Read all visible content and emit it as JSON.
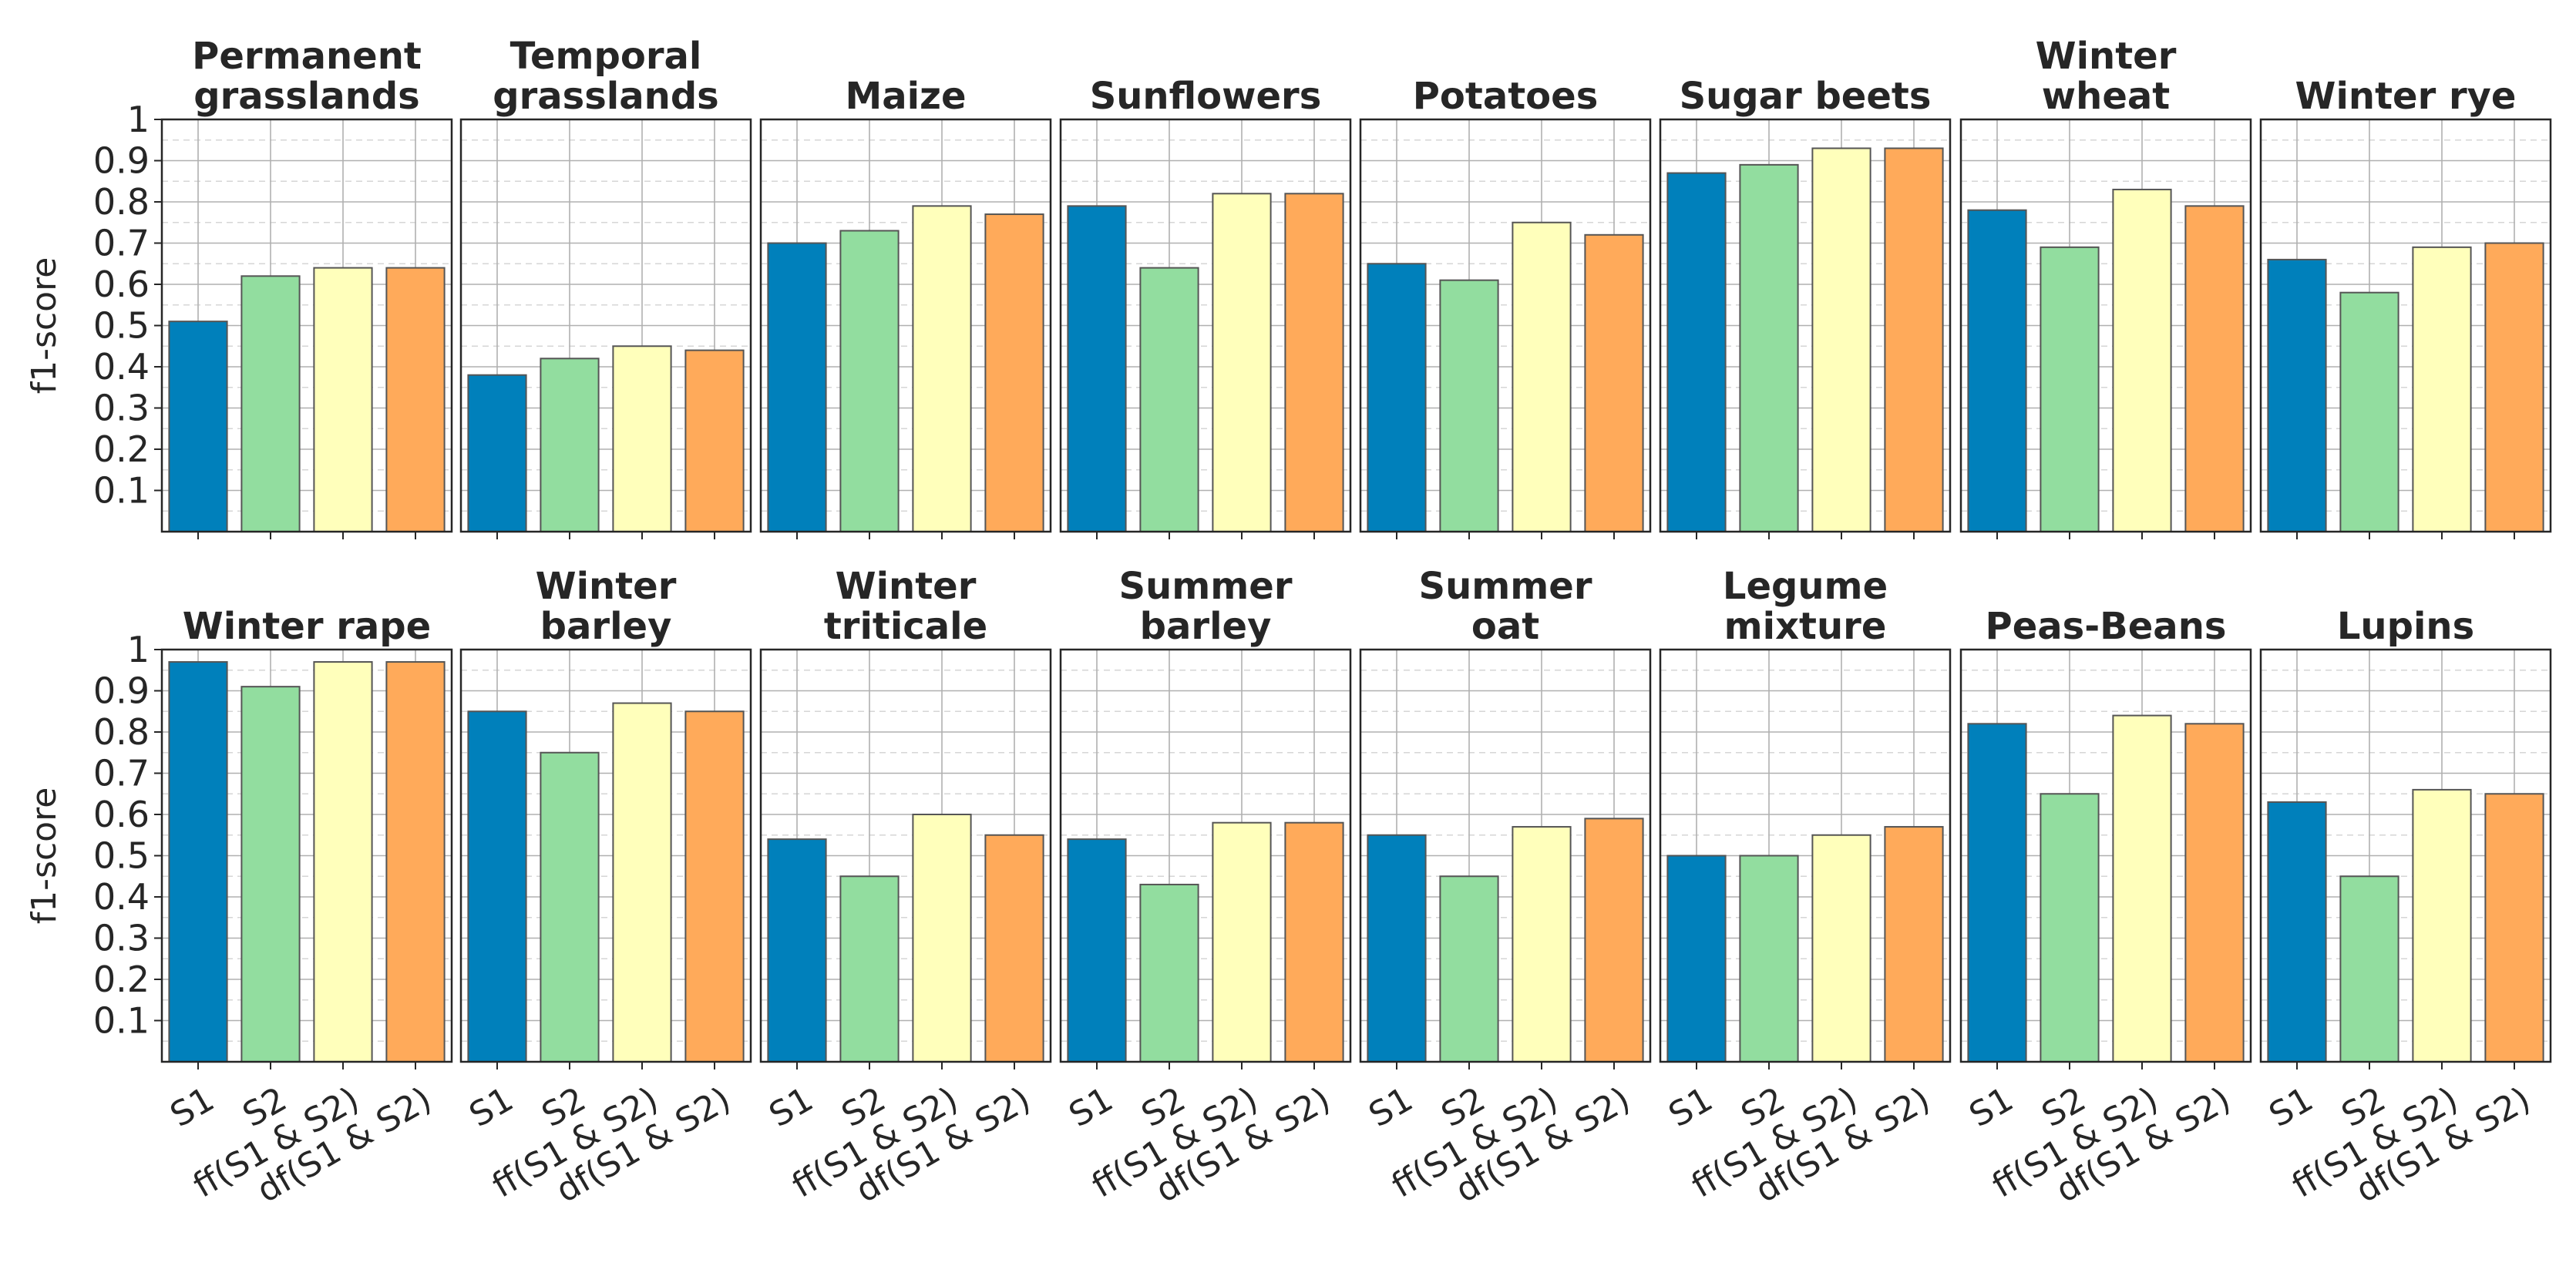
{
  "chart_data": {
    "type": "bar",
    "layout": "small-multiples",
    "ylabel": "f1-score",
    "ylim": [
      0,
      1
    ],
    "yticks": [
      "0.1",
      "0.2",
      "0.3",
      "0.4",
      "0.5",
      "0.6",
      "0.7",
      "0.8",
      "0.9",
      "1"
    ],
    "categories": [
      "S1",
      "S2",
      "ff(S1 & S2)",
      "df(S1 & S2)"
    ],
    "colors": [
      "#0080bb",
      "#92dd9f",
      "#ffffbb",
      "#ffaa5a"
    ],
    "panels": [
      {
        "title": [
          "Permanent",
          "grasslands"
        ],
        "values": [
          0.51,
          0.62,
          0.64,
          0.64
        ]
      },
      {
        "title": [
          "Temporal",
          "grasslands"
        ],
        "values": [
          0.38,
          0.42,
          0.45,
          0.44
        ]
      },
      {
        "title": [
          "Maize"
        ],
        "values": [
          0.7,
          0.73,
          0.79,
          0.77
        ]
      },
      {
        "title": [
          "Sunflowers"
        ],
        "values": [
          0.79,
          0.64,
          0.82,
          0.82
        ]
      },
      {
        "title": [
          "Potatoes"
        ],
        "values": [
          0.65,
          0.61,
          0.75,
          0.72
        ]
      },
      {
        "title": [
          "Sugar beets"
        ],
        "values": [
          0.87,
          0.89,
          0.93,
          0.93
        ]
      },
      {
        "title": [
          "Winter",
          "wheat"
        ],
        "values": [
          0.78,
          0.69,
          0.83,
          0.79
        ]
      },
      {
        "title": [
          "Winter rye"
        ],
        "values": [
          0.66,
          0.58,
          0.69,
          0.7
        ]
      },
      {
        "title": [
          "Winter rape"
        ],
        "values": [
          0.97,
          0.91,
          0.97,
          0.97
        ]
      },
      {
        "title": [
          "Winter",
          "barley"
        ],
        "values": [
          0.85,
          0.75,
          0.87,
          0.85
        ]
      },
      {
        "title": [
          "Winter",
          "triticale"
        ],
        "values": [
          0.54,
          0.45,
          0.6,
          0.55
        ]
      },
      {
        "title": [
          "Summer",
          "barley"
        ],
        "values": [
          0.54,
          0.43,
          0.58,
          0.58
        ]
      },
      {
        "title": [
          "Summer",
          "oat"
        ],
        "values": [
          0.55,
          0.45,
          0.57,
          0.59
        ]
      },
      {
        "title": [
          "Legume",
          "mixture"
        ],
        "values": [
          0.5,
          0.5,
          0.55,
          0.57
        ]
      },
      {
        "title": [
          "Peas-Beans"
        ],
        "values": [
          0.82,
          0.65,
          0.84,
          0.82
        ]
      },
      {
        "title": [
          "Lupins"
        ],
        "values": [
          0.63,
          0.45,
          0.66,
          0.65
        ]
      }
    ]
  }
}
